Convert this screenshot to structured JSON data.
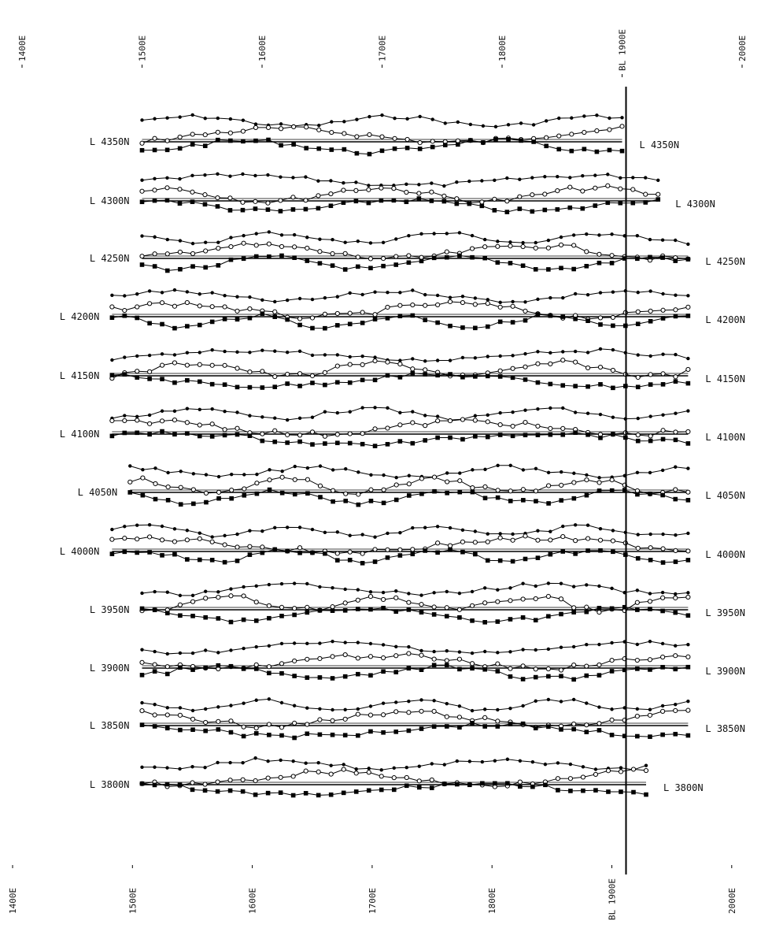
{
  "chart_data": {
    "type": "line",
    "title": "",
    "xlabel": "",
    "ylabel": "",
    "grid": false,
    "x_range": [
      1400,
      2000
    ],
    "top_axis_labels": [
      "1400E",
      "1500E",
      "1600E",
      "1700E",
      "1800E",
      "BL 1900E",
      "2000E"
    ],
    "bottom_axis_labels": [
      "1400E",
      "1500E",
      "1600E",
      "1700E",
      "1800E",
      "BL 1900E",
      "2000E"
    ],
    "baseline": {
      "label": "BL 1900E",
      "x": 1900
    },
    "lines": [
      {
        "label_left": "L 4350N",
        "label_right": "L 4350N",
        "x_start": 1500,
        "x_end": 1900
      },
      {
        "label_left": "L 4300N",
        "label_right": "L 4300N",
        "x_start": 1500,
        "x_end": 1930
      },
      {
        "label_left": "L 4250N",
        "label_right": "L 4250N",
        "x_start": 1500,
        "x_end": 1955
      },
      {
        "label_left": "L 4200N",
        "label_right": "L 4200N",
        "x_start": 1475,
        "x_end": 1955
      },
      {
        "label_left": "L 4150N",
        "label_right": "L 4150N",
        "x_start": 1475,
        "x_end": 1955
      },
      {
        "label_left": "L 4100N",
        "label_right": "L 4100N",
        "x_start": 1475,
        "x_end": 1955
      },
      {
        "label_left": "L 4050N",
        "label_right": "L 4050N",
        "x_start": 1490,
        "x_end": 1955
      },
      {
        "label_left": "L 4000N",
        "label_right": "L 4000N",
        "x_start": 1475,
        "x_end": 1955
      },
      {
        "label_left": "L 3950N",
        "label_right": "L 3950N",
        "x_start": 1500,
        "x_end": 1955
      },
      {
        "label_left": "L 3900N",
        "label_right": "L 3900N",
        "x_start": 1500,
        "x_end": 1955
      },
      {
        "label_left": "L 3850N",
        "label_right": "L 3850N",
        "x_start": 1500,
        "x_end": 1955
      },
      {
        "label_left": "L 3800N",
        "label_right": "L 3800N",
        "x_start": 1500,
        "x_end": 1920
      }
    ],
    "series": [
      {
        "marker": "dot"
      },
      {
        "marker": "circle"
      },
      {
        "marker": "square"
      }
    ],
    "annotations": [
      "BL 1900E"
    ]
  }
}
